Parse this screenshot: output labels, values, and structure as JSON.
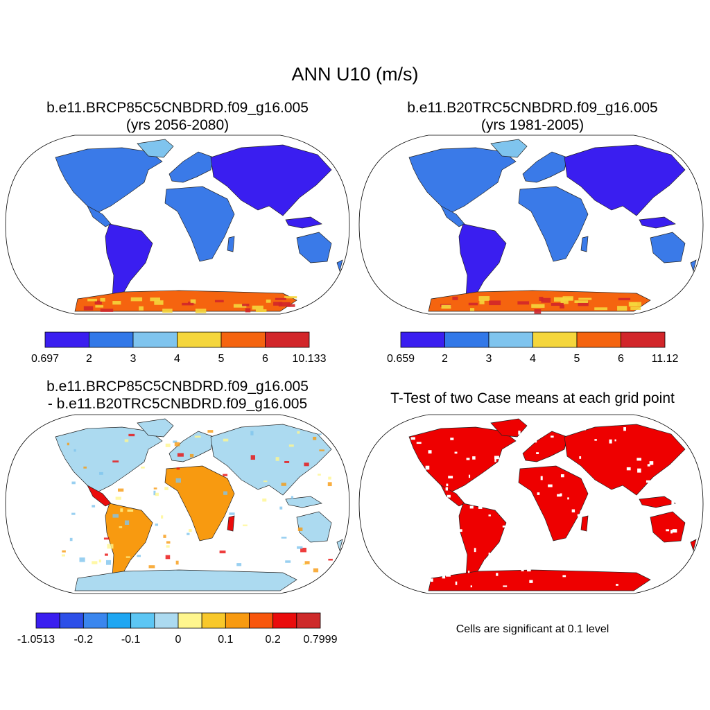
{
  "title": "ANN U10 (m/s)",
  "panels": [
    {
      "id": "case",
      "title_line1": "b.e11.BRCP85C5CNBDRD.f09_g16.005",
      "title_line2": "(yrs 2056-2080)",
      "colorbar": {
        "colors": [
          "#3a1ef0",
          "#3278e8",
          "#7fc4ee",
          "#f5d63c",
          "#f5640f",
          "#d2262a"
        ],
        "labels": [
          "0.697",
          "2",
          "3",
          "4",
          "5",
          "6",
          "10.133"
        ]
      }
    },
    {
      "id": "control",
      "title_line1": "b.e11.B20TRC5CNBDRD.f09_g16.005",
      "title_line2": "(yrs 1981-2005)",
      "colorbar": {
        "colors": [
          "#3a1ef0",
          "#3278e8",
          "#7fc4ee",
          "#f5d63c",
          "#f5640f",
          "#d2262a"
        ],
        "labels": [
          "0.659",
          "2",
          "3",
          "4",
          "5",
          "6",
          "11.12"
        ]
      }
    },
    {
      "id": "difference",
      "title_line1": "b.e11.BRCP85C5CNBDRD.f09_g16.005",
      "title_line2": "- b.e11.B20TRC5CNBDRD.f09_g16.005",
      "colorbar": {
        "colors": [
          "#3a1ef0",
          "#2d4fe8",
          "#3a86ee",
          "#1ea6f2",
          "#5cc6f4",
          "#acdaf0",
          "#fff68e",
          "#f8c82a",
          "#f89a10",
          "#f8560c",
          "#ea0c0c",
          "#ce2a2a"
        ],
        "labels": [
          "-1.0513",
          "-0.2",
          "-0.1",
          "0",
          "0.1",
          "0.2",
          "0.7999"
        ]
      }
    },
    {
      "id": "ttest",
      "title_line1": "T-Test of two Case means at each grid point",
      "note": "Cells are significant at 0.1 level"
    }
  ],
  "map_colors": {
    "land_case": "#3a7ae8",
    "land_dark": "#3a1ef0",
    "land_light": "#7fc4ee",
    "antarctic_warm": "#f5640f",
    "antarctic_hot": "#d2262a",
    "antarctic_mid": "#f5d63c",
    "diff_neutral": "#acdaf0",
    "diff_warm": "#f89a10",
    "diff_yellow": "#fff68e",
    "diff_red": "#ea0c0c",
    "significant": "#ee0000"
  }
}
